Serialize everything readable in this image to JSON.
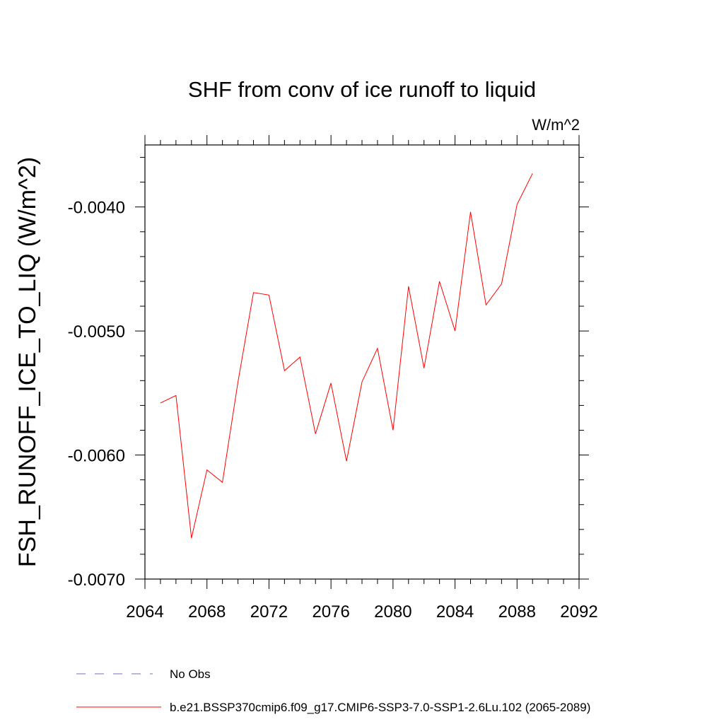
{
  "chart_data": {
    "type": "line",
    "title": "SHF from conv of ice runoff to liquid",
    "units_label": "W/m^2",
    "ylabel": "FSH_RUNOFF_ICE_TO_LIQ  (W/m^2)",
    "xlabel": "",
    "xlim": [
      2064,
      2092
    ],
    "ylim": [
      -0.007,
      -0.0035
    ],
    "x_ticks": [
      2064,
      2068,
      2072,
      2076,
      2080,
      2084,
      2088,
      2092
    ],
    "x_tick_labels": [
      "2064",
      "2068",
      "2072",
      "2076",
      "2080",
      "2084",
      "2088",
      "2092"
    ],
    "y_ticks": [
      -0.007,
      -0.006,
      -0.005,
      -0.004
    ],
    "y_tick_labels": [
      "-0.0070",
      "-0.0060",
      "-0.0050",
      "-0.0040"
    ],
    "grid": false,
    "series": [
      {
        "name": "b.e21.BSSP370cmip6.f09_g17.CMIP6-SSP3-7.0-SSP1-2.6Lu.102 (2065-2089)",
        "color": "#ff0000",
        "x": [
          2065,
          2066,
          2067,
          2068,
          2069,
          2070,
          2071,
          2072,
          2073,
          2074,
          2075,
          2076,
          2077,
          2078,
          2079,
          2080,
          2081,
          2082,
          2083,
          2084,
          2085,
          2086,
          2087,
          2088,
          2089
        ],
        "y": [
          -0.00558,
          -0.00552,
          -0.00667,
          -0.00612,
          -0.00622,
          -0.00541,
          -0.00469,
          -0.00471,
          -0.00532,
          -0.00521,
          -0.00583,
          -0.00542,
          -0.00605,
          -0.00541,
          -0.00514,
          -0.0058,
          -0.00464,
          -0.0053,
          -0.0046,
          -0.005,
          -0.00404,
          -0.00479,
          -0.00462,
          -0.00398,
          -0.00373
        ]
      }
    ],
    "legend": [
      {
        "label": "No Obs",
        "color": "#7b68c8",
        "style": "dashed"
      },
      {
        "label": "b.e21.BSSP370cmip6.f09_g17.CMIP6-SSP3-7.0-SSP1-2.6Lu.102 (2065-2089)",
        "color": "#ff0000",
        "style": "solid"
      }
    ],
    "legend_position": "bottom"
  }
}
